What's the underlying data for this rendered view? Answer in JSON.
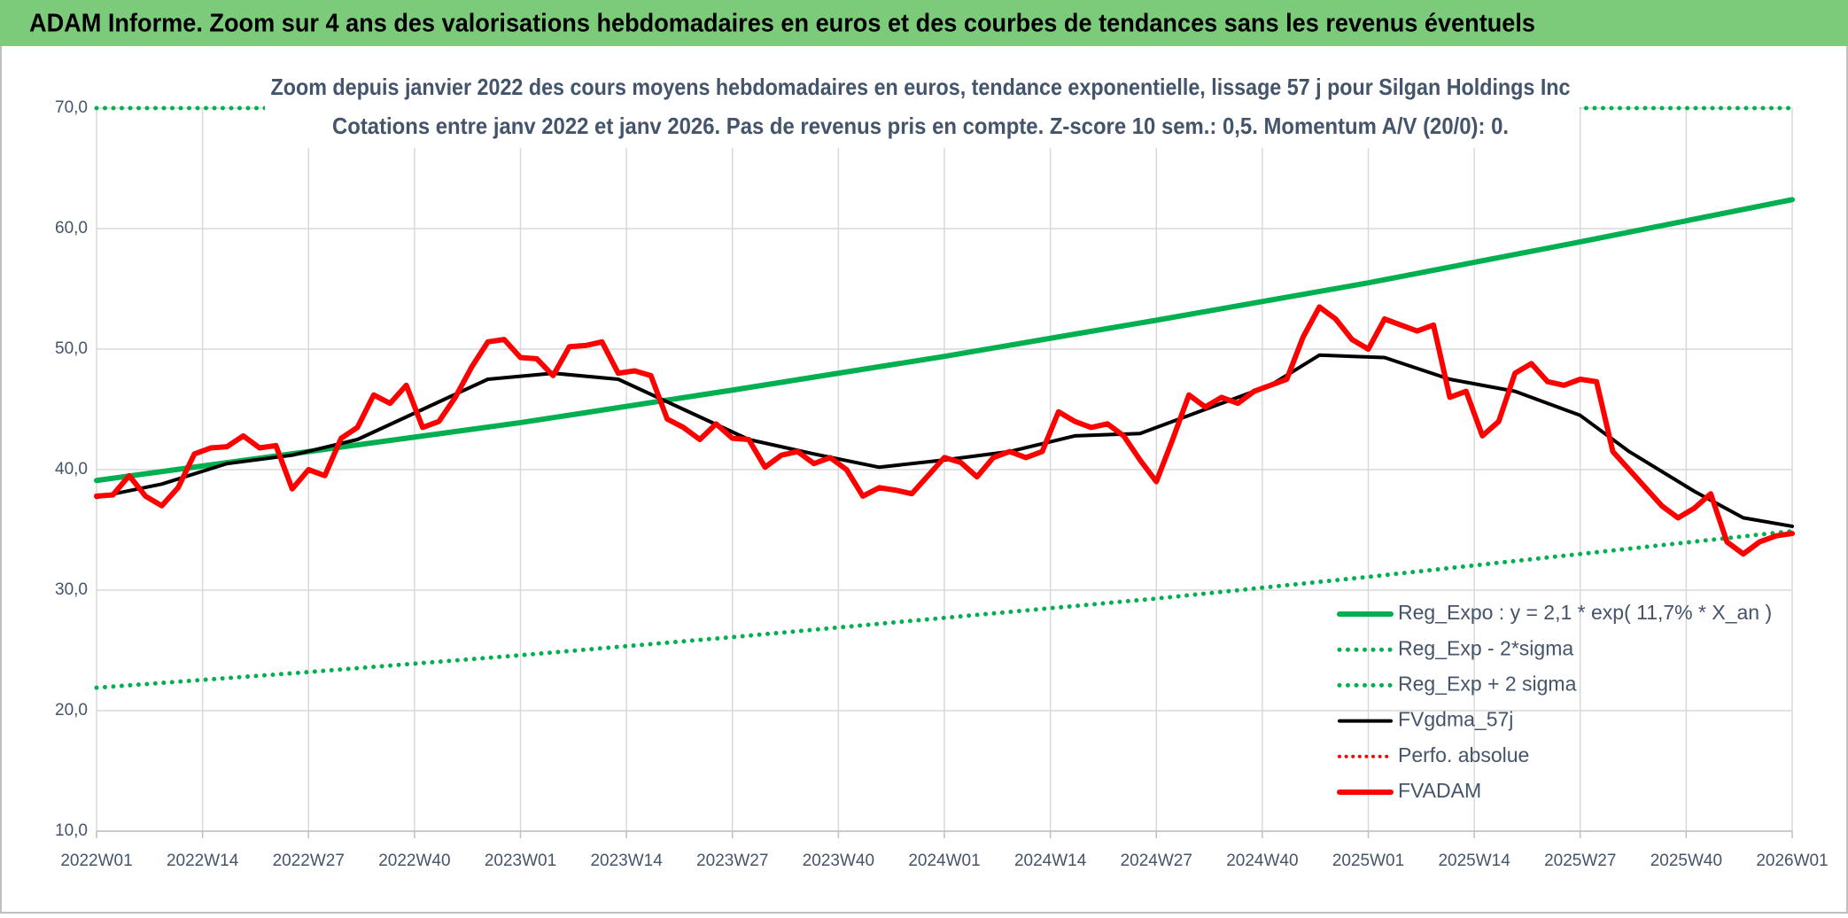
{
  "chart_data": {
    "type": "line",
    "header": "ADAM Informe. Zoom sur 4 ans des valorisations hebdomadaires en euros et des courbes de tendances sans les revenus éventuels",
    "title": "Zoom depuis janvier 2022 des cours moyens hebdomadaires en euros, tendance exponentielle, lissage 57 j pour Silgan Holdings Inc",
    "subtitle": "Cotations entre janv 2022 et janv 2026. Pas de revenus pris en compte. Z-score 10 sem.: 0,5. Momentum A/V (20/0): 0.",
    "xlim": [
      0,
      208
    ],
    "xticks": [
      {
        "value": 0,
        "label": "2022W01"
      },
      {
        "value": 13,
        "label": "2022W14"
      },
      {
        "value": 26,
        "label": "2022W27"
      },
      {
        "value": 39,
        "label": "2022W40"
      },
      {
        "value": 52,
        "label": "2023W01"
      },
      {
        "value": 65,
        "label": "2023W14"
      },
      {
        "value": 78,
        "label": "2023W27"
      },
      {
        "value": 91,
        "label": "2023W40"
      },
      {
        "value": 104,
        "label": "2024W01"
      },
      {
        "value": 117,
        "label": "2024W14"
      },
      {
        "value": 130,
        "label": "2024W27"
      },
      {
        "value": 143,
        "label": "2024W40"
      },
      {
        "value": 156,
        "label": "2025W01"
      },
      {
        "value": 169,
        "label": "2025W14"
      },
      {
        "value": 182,
        "label": "2025W27"
      },
      {
        "value": 195,
        "label": "2025W40"
      },
      {
        "value": 208,
        "label": "2026W01"
      }
    ],
    "ylim": [
      10,
      70
    ],
    "yticks": [
      {
        "value": 10,
        "label": "10,0"
      },
      {
        "value": 20,
        "label": "20,0"
      },
      {
        "value": 30,
        "label": "30,0"
      },
      {
        "value": 40,
        "label": "40,0"
      },
      {
        "value": 50,
        "label": "50,0"
      },
      {
        "value": 60,
        "label": "60,0"
      },
      {
        "value": 70,
        "label": "70,0"
      }
    ],
    "grid": true,
    "legend": "bottom-right",
    "series": [
      {
        "name": "Reg_Expo : y = 2,1 * exp( 11,7% *  X_an )",
        "color": "#00b050",
        "dash": "solid",
        "width": 6,
        "x": [
          0,
          26,
          52,
          78,
          104,
          130,
          156,
          182,
          208
        ],
        "values": [
          39.1,
          41.5,
          43.9,
          46.6,
          49.4,
          52.4,
          55.5,
          58.9,
          62.4
        ]
      },
      {
        "name": "Reg_Exp - 2*sigma",
        "color": "#00b050",
        "dash": "dotted",
        "width": 5,
        "x": [
          0,
          26,
          52,
          78,
          104,
          130,
          156,
          182,
          208
        ],
        "values": [
          21.9,
          23.2,
          24.6,
          26.1,
          27.7,
          29.3,
          31.1,
          33.0,
          34.9
        ]
      },
      {
        "name": "Reg_Exp + 2 sigma",
        "color": "#00b050",
        "dash": "dotted",
        "width": 5,
        "x": [
          0,
          208
        ],
        "values": [
          70,
          70
        ]
      },
      {
        "name": "FVgdma_57j",
        "color": "#000000",
        "dash": "solid",
        "width": 4,
        "x": [
          0,
          8,
          16,
          24,
          32,
          40,
          48,
          56,
          64,
          72,
          80,
          88,
          96,
          104,
          112,
          120,
          128,
          136,
          144,
          150,
          158,
          166,
          174,
          182,
          188,
          196,
          202,
          208
        ],
        "values": [
          37.7,
          38.8,
          40.5,
          41.2,
          42.5,
          45.0,
          47.5,
          48.0,
          47.5,
          45.0,
          42.5,
          41.3,
          40.2,
          40.8,
          41.5,
          42.8,
          43.0,
          45.0,
          47.0,
          49.5,
          49.3,
          47.5,
          46.5,
          44.5,
          41.5,
          38.2,
          36.0,
          35.3
        ]
      },
      {
        "name": "Perfo. absolue",
        "color": "#ff0000",
        "dash": "dotted",
        "width": 4,
        "x": [],
        "values": []
      },
      {
        "name": "FVADAM",
        "color": "#ff0000",
        "dash": "solid",
        "width": 6,
        "x": [
          0,
          2,
          4,
          6,
          8,
          10,
          12,
          14,
          16,
          18,
          20,
          22,
          24,
          26,
          28,
          30,
          32,
          34,
          36,
          38,
          40,
          42,
          44,
          46,
          48,
          50,
          52,
          54,
          56,
          58,
          60,
          62,
          64,
          66,
          68,
          70,
          72,
          74,
          76,
          78,
          80,
          82,
          84,
          86,
          88,
          90,
          92,
          94,
          96,
          98,
          100,
          102,
          104,
          106,
          108,
          110,
          112,
          114,
          116,
          118,
          120,
          122,
          124,
          126,
          128,
          130,
          132,
          134,
          136,
          138,
          140,
          142,
          144,
          146,
          148,
          150,
          152,
          154,
          156,
          158,
          160,
          162,
          164,
          166,
          168,
          170,
          172,
          174,
          176,
          178,
          180,
          182,
          184,
          186,
          188,
          190,
          192,
          194,
          196,
          198,
          200,
          202,
          204,
          206,
          208
        ],
        "values": [
          37.8,
          37.9,
          39.5,
          37.8,
          37.0,
          38.5,
          41.3,
          41.8,
          41.9,
          42.8,
          41.8,
          42.0,
          38.4,
          40.0,
          39.5,
          42.6,
          43.5,
          46.2,
          45.5,
          47.0,
          43.5,
          44.0,
          46.0,
          48.5,
          50.6,
          50.8,
          49.3,
          49.2,
          47.8,
          50.2,
          50.3,
          50.6,
          48.0,
          48.2,
          47.8,
          44.2,
          43.5,
          42.5,
          43.8,
          42.6,
          42.5,
          40.2,
          41.2,
          41.5,
          40.5,
          41.0,
          40.0,
          37.8,
          38.5,
          38.3,
          38.0,
          39.5,
          41.0,
          40.6,
          39.4,
          41.0,
          41.5,
          41.0,
          41.5,
          44.8,
          44.0,
          43.5,
          43.8,
          42.8,
          40.8,
          39.0,
          42.5,
          46.2,
          45.2,
          46.0,
          45.5,
          46.5,
          47.0,
          47.5,
          51.0,
          53.5,
          52.5,
          50.8,
          50.0,
          52.5,
          52.0,
          51.5,
          52.0,
          46.0,
          46.5,
          42.8,
          44.0,
          48.0,
          48.8,
          47.3,
          47.0,
          47.5,
          47.3,
          41.5,
          40.0,
          38.5,
          37.0,
          36.0,
          36.8,
          38.0,
          34.0,
          33.0,
          34.0,
          34.5,
          34.7
        ]
      }
    ]
  }
}
